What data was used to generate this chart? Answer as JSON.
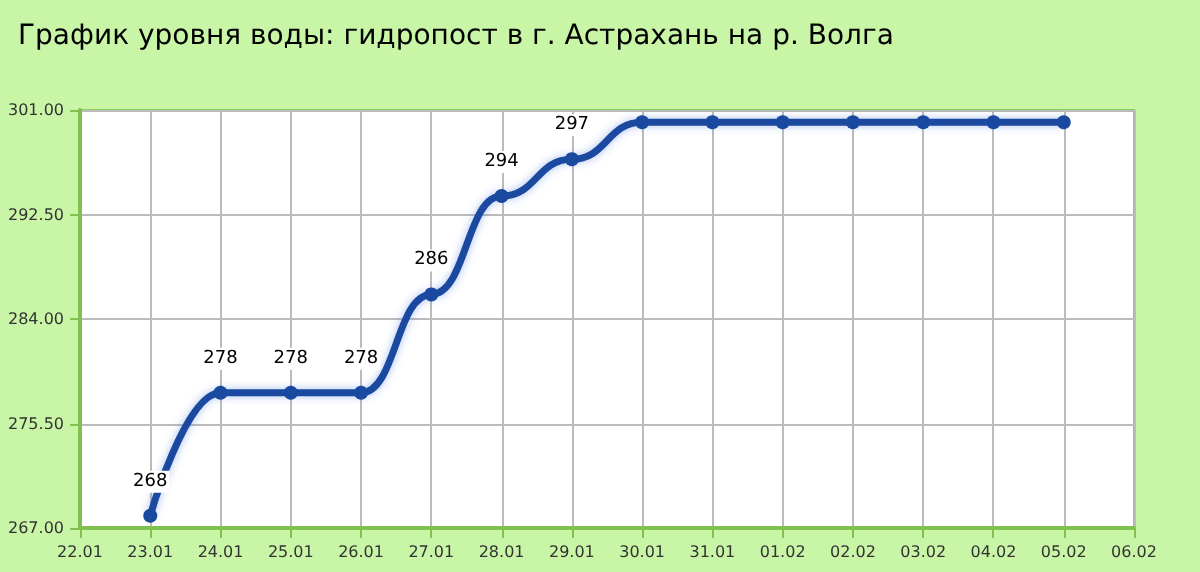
{
  "chart_data": {
    "type": "line",
    "title": "График уровня воды: гидропост в г. Астрахань на р. Волга",
    "x": [
      "--01-23",
      "--01-24",
      "--01-25",
      "--01-26",
      "--01-27",
      "--01-28",
      "--01-29",
      "--01-30",
      "--01-31",
      "--02-01",
      "--02-02",
      "--02-03",
      "--02-04",
      "--02-05"
    ],
    "series": [
      {
        "color": "#1a4aa0",
        "values": [
          268,
          278,
          278,
          278,
          286,
          294,
          297,
          300,
          300,
          300,
          300,
          300,
          300,
          300
        ],
        "value_labels": [
          "268",
          "278",
          "278",
          "278",
          "286",
          "294",
          "297",
          null,
          null,
          null,
          null,
          null,
          null,
          null
        ]
      }
    ],
    "xlim": [
      "--01-22",
      "--02-06"
    ],
    "xticks": [
      {
        "value": "--01-22",
        "label": "22.01"
      },
      {
        "value": "--01-23",
        "label": "23.01"
      },
      {
        "value": "--01-24",
        "label": "24.01"
      },
      {
        "value": "--01-25",
        "label": "25.01"
      },
      {
        "value": "--01-26",
        "label": "26.01"
      },
      {
        "value": "--01-27",
        "label": "27.01"
      },
      {
        "value": "--01-28",
        "label": "28.01"
      },
      {
        "value": "--01-29",
        "label": "29.01"
      },
      {
        "value": "--01-30",
        "label": "30.01"
      },
      {
        "value": "--01-31",
        "label": "31.01"
      },
      {
        "value": "--02-01",
        "label": "01.02"
      },
      {
        "value": "--02-02",
        "label": "02.02"
      },
      {
        "value": "--02-03",
        "label": "03.02"
      },
      {
        "value": "--02-04",
        "label": "04.02"
      },
      {
        "value": "--02-05",
        "label": "05.02"
      },
      {
        "value": "--02-06",
        "label": "06.02"
      }
    ],
    "ylim": [
      267,
      301
    ],
    "yticks": [
      {
        "value": 267,
        "label": "267.00"
      },
      {
        "value": 275.5,
        "label": "275.50"
      },
      {
        "value": 284,
        "label": "284.00"
      },
      {
        "value": 292.5,
        "label": "292.50"
      },
      {
        "value": 301,
        "label": "301.00"
      }
    ],
    "grid": true,
    "marker": "circle",
    "line_style": "solid"
  }
}
